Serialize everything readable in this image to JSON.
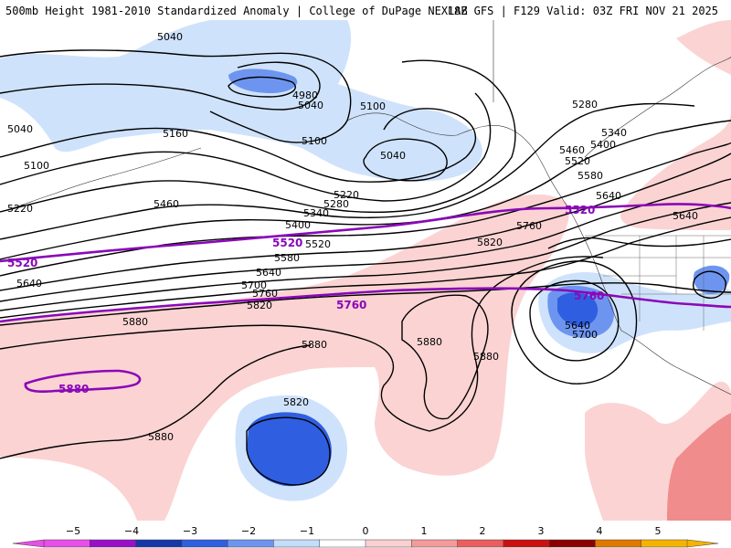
{
  "header": {
    "title_left": "500mb Height 1981-2010 Standardized Anomaly | College of DuPage NEXLAB",
    "title_right": "18Z GFS | F129 Valid: 03Z FRI NOV 21 2025"
  },
  "map": {
    "contour_labels": [
      "5040",
      "4980",
      "5040",
      "5100",
      "5040",
      "5100",
      "5160",
      "5220",
      "5280",
      "5340",
      "5400",
      "5460",
      "5520",
      "5580",
      "5640",
      "5700",
      "5760",
      "5820",
      "5880",
      "5040",
      "5100",
      "5220",
      "5640",
      "5280",
      "5340",
      "5400",
      "5460",
      "5520",
      "5580",
      "5640",
      "5640",
      "5760",
      "5820",
      "5880",
      "5880",
      "5880",
      "5880",
      "5820",
      "5700",
      "5640"
    ],
    "purple_labels": [
      "5520",
      "5520",
      "5520",
      "5760",
      "5760",
      "5880"
    ]
  },
  "colorbar": {
    "ticks": [
      "−5",
      "−4",
      "−3",
      "−2",
      "−1",
      "0",
      "1",
      "2",
      "3",
      "4",
      "5"
    ],
    "colors": [
      "#e84ee8",
      "#9a10c8",
      "#1637a8",
      "#2f5fe0",
      "#6d95f0",
      "#c5dcfb",
      "#ffffff",
      "#fbd0d0",
      "#f49a9a",
      "#ec5e5e",
      "#cc1010",
      "#8c0000",
      "#e07800",
      "#f5b300"
    ]
  },
  "palette": {
    "neg_light": "#cfe2fb",
    "neg_mid": "#6d95f0",
    "neg_strong": "#2f5fe0",
    "pos_light": "#fbd3d3",
    "pos_mid": "#f08c8c",
    "purple": "#8a08b8"
  }
}
